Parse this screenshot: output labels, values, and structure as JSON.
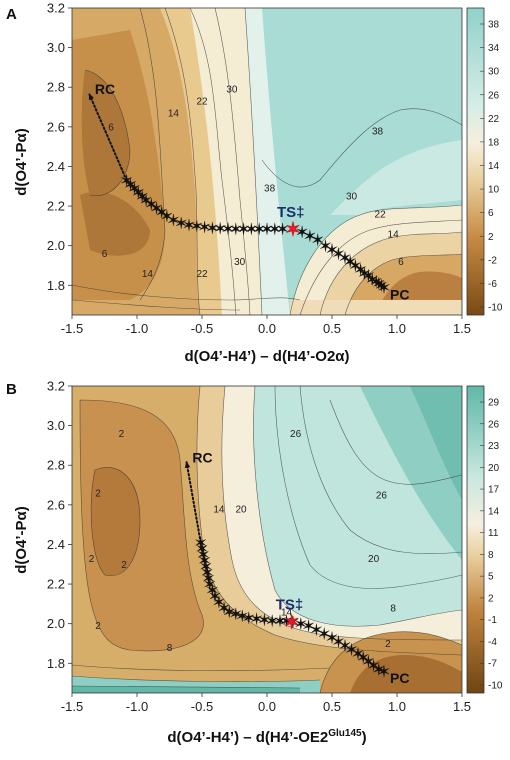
{
  "chart_data": [
    {
      "type": "heatmap",
      "panel_label": "A",
      "xlabel": "d(O4’-H4’) – d(H4’-O2α)",
      "xlabel_sup": "",
      "ylabel": "d(O4’-Pα)",
      "xlim": [
        -1.5,
        1.5
      ],
      "ylim": [
        1.65,
        3.2
      ],
      "x_ticks": [
        "-1.5",
        "-1.0",
        "-0.5",
        "0.0",
        "0.5",
        "1.0",
        "1.5"
      ],
      "x_tick_values": [
        -1.5,
        -1.0,
        -0.5,
        0.0,
        0.5,
        1.0,
        1.5
      ],
      "y_ticks": [
        "1.8",
        "2.0",
        "2.2",
        "2.4",
        "2.6",
        "2.8",
        "3.0",
        "3.2"
      ],
      "y_tick_values": [
        1.8,
        2.0,
        2.2,
        2.4,
        2.6,
        2.8,
        3.0,
        3.2
      ],
      "colorbar_ticks": [
        "38",
        "34",
        "30",
        "26",
        "22",
        "18",
        "14",
        "10",
        "6",
        "2",
        "-2",
        "-6",
        "-10"
      ],
      "colorbar_range": [
        -10,
        40
      ],
      "contour_labels": [
        {
          "text": "6",
          "x": -1.2,
          "y": 2.6
        },
        {
          "text": "14",
          "x": -0.72,
          "y": 2.67
        },
        {
          "text": "22",
          "x": -0.5,
          "y": 2.73
        },
        {
          "text": "30",
          "x": -0.27,
          "y": 2.79
        },
        {
          "text": "38",
          "x": 0.85,
          "y": 2.58
        },
        {
          "text": "38",
          "x": 0.02,
          "y": 2.29
        },
        {
          "text": "30",
          "x": 0.65,
          "y": 2.25
        },
        {
          "text": "22",
          "x": 0.87,
          "y": 2.16
        },
        {
          "text": "14",
          "x": 0.97,
          "y": 2.06
        },
        {
          "text": "6",
          "x": 1.03,
          "y": 1.92
        },
        {
          "text": "6",
          "x": -1.25,
          "y": 1.96
        },
        {
          "text": "14",
          "x": -0.92,
          "y": 1.86
        },
        {
          "text": "22",
          "x": -0.5,
          "y": 1.86
        },
        {
          "text": "30",
          "x": -0.21,
          "y": 1.92
        }
      ],
      "annotations": {
        "rc": "RC",
        "pc": "PC",
        "ts": "TS‡"
      },
      "rc_point": {
        "x": -1.37,
        "y": 2.77
      },
      "path": {
        "x": [
          -1.08,
          -1.05,
          -1.02,
          -0.99,
          -0.96,
          -0.93,
          -0.89,
          -0.85,
          -0.81,
          -0.77,
          -0.72,
          -0.66,
          -0.6,
          -0.54,
          -0.48,
          -0.42,
          -0.36,
          -0.3,
          -0.24,
          -0.18,
          -0.12,
          -0.06,
          0.0,
          0.06,
          0.12,
          0.2,
          0.27,
          0.33,
          0.39,
          0.45,
          0.5,
          0.55,
          0.6,
          0.64,
          0.68,
          0.72,
          0.75,
          0.78,
          0.81,
          0.84,
          0.86,
          0.88,
          0.9
        ],
        "y": [
          2.33,
          2.31,
          2.29,
          2.27,
          2.25,
          2.23,
          2.21,
          2.19,
          2.17,
          2.15,
          2.13,
          2.115,
          2.105,
          2.1,
          2.095,
          2.09,
          2.088,
          2.086,
          2.085,
          2.085,
          2.085,
          2.085,
          2.085,
          2.085,
          2.085,
          2.085,
          2.07,
          2.05,
          2.03,
          2.0,
          1.98,
          1.96,
          1.94,
          1.92,
          1.9,
          1.88,
          1.86,
          1.85,
          1.83,
          1.82,
          1.81,
          1.8,
          1.79
        ]
      },
      "ts_point": {
        "x": 0.2,
        "y": 2.085
      }
    },
    {
      "type": "heatmap",
      "panel_label": "B",
      "xlabel": "d(O4’-H4’) – d(H4’-OE2",
      "xlabel_sup": "Glu145",
      "xlabel_end": ")",
      "ylabel": "d(O4’-Pα)",
      "xlim": [
        -1.5,
        1.5
      ],
      "ylim": [
        1.65,
        3.2
      ],
      "x_ticks": [
        "-1.5",
        "-1.0",
        "-0.5",
        "0.0",
        "0.5",
        "1.0",
        "1.5"
      ],
      "x_tick_values": [
        -1.5,
        -1.0,
        -0.5,
        0.0,
        0.5,
        1.0,
        1.5
      ],
      "y_ticks": [
        "1.8",
        "2.0",
        "2.2",
        "2.4",
        "2.6",
        "2.8",
        "3.0",
        "3.2"
      ],
      "y_tick_values": [
        1.8,
        2.0,
        2.2,
        2.4,
        2.6,
        2.8,
        3.0,
        3.2
      ],
      "colorbar_ticks": [
        "29",
        "26",
        "23",
        "20",
        "17",
        "14",
        "11",
        "8",
        "5",
        "2",
        "-1",
        "-4",
        "-7",
        "-10"
      ],
      "colorbar_range": [
        -10,
        31
      ],
      "contour_labels": [
        {
          "text": "2",
          "x": -1.12,
          "y": 2.96
        },
        {
          "text": "2",
          "x": -1.3,
          "y": 2.66
        },
        {
          "text": "2",
          "x": -1.35,
          "y": 2.33
        },
        {
          "text": "2",
          "x": -1.1,
          "y": 2.3
        },
        {
          "text": "2",
          "x": -1.3,
          "y": 1.99
        },
        {
          "text": "14",
          "x": -0.37,
          "y": 2.58
        },
        {
          "text": "20",
          "x": -0.2,
          "y": 2.58
        },
        {
          "text": "26",
          "x": 0.22,
          "y": 2.96
        },
        {
          "text": "26",
          "x": 0.88,
          "y": 2.65
        },
        {
          "text": "20",
          "x": 0.82,
          "y": 2.33
        },
        {
          "text": "8",
          "x": 0.97,
          "y": 2.08
        },
        {
          "text": "14",
          "x": 0.15,
          "y": 2.06
        },
        {
          "text": "2",
          "x": 0.93,
          "y": 1.9
        },
        {
          "text": "8",
          "x": -0.75,
          "y": 1.88
        }
      ],
      "annotations": {
        "rc": "RC",
        "pc": "PC",
        "ts": "TS‡"
      },
      "rc_point": {
        "x": -0.62,
        "y": 2.82
      },
      "path": {
        "x": [
          -0.51,
          -0.5,
          -0.49,
          -0.48,
          -0.47,
          -0.46,
          -0.45,
          -0.44,
          -0.42,
          -0.4,
          -0.37,
          -0.33,
          -0.29,
          -0.24,
          -0.19,
          -0.14,
          -0.08,
          -0.02,
          0.04,
          0.1,
          0.15,
          0.2,
          0.26,
          0.32,
          0.38,
          0.44,
          0.5,
          0.55,
          0.6,
          0.65,
          0.7,
          0.74,
          0.78,
          0.82,
          0.86,
          0.9
        ],
        "y": [
          2.41,
          2.38,
          2.35,
          2.32,
          2.29,
          2.26,
          2.23,
          2.2,
          2.17,
          2.14,
          2.11,
          2.08,
          2.06,
          2.05,
          2.04,
          2.03,
          2.025,
          2.02,
          2.015,
          2.015,
          2.015,
          2.01,
          2.0,
          1.99,
          1.97,
          1.95,
          1.93,
          1.91,
          1.89,
          1.87,
          1.85,
          1.83,
          1.81,
          1.79,
          1.77,
          1.76
        ]
      },
      "ts_point": {
        "x": 0.19,
        "y": 2.01
      }
    }
  ]
}
